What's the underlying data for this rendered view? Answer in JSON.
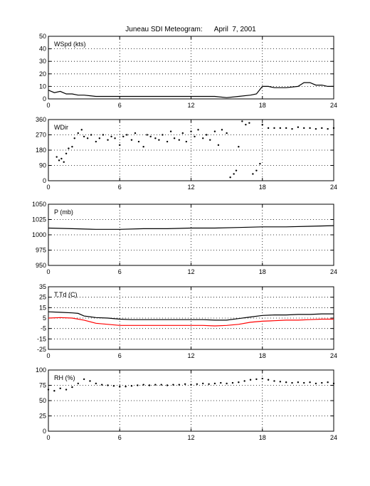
{
  "figure": {
    "title": "Juneau SDI Meteogram:      April  7, 2001"
  },
  "chart_data": [
    {
      "type": "line",
      "label": "WSpd (kts)",
      "xlim": [
        0,
        24
      ],
      "ylim": [
        0,
        50
      ],
      "xticks": [
        0,
        6,
        12,
        18,
        24
      ],
      "yticks": [
        0,
        10,
        20,
        30,
        40,
        50
      ],
      "grid": true,
      "series": [
        {
          "color": "#000000",
          "x": [
            0,
            0.5,
            1,
            1.5,
            2,
            2.5,
            3,
            4,
            5,
            6,
            7,
            8,
            9,
            10,
            11,
            12,
            13,
            14,
            15,
            16,
            17,
            17.5,
            18,
            18.5,
            19,
            20,
            21,
            21.5,
            22,
            22.5,
            23,
            23.5,
            24
          ],
          "y": [
            7,
            5,
            6,
            4,
            4,
            3,
            3,
            2,
            2,
            2,
            2,
            2,
            2,
            2,
            2,
            2,
            2,
            2,
            1,
            2,
            3,
            4,
            10,
            10,
            9,
            9,
            10,
            13,
            13,
            11,
            11,
            10,
            10
          ]
        }
      ]
    },
    {
      "type": "scatter",
      "label": "WDir",
      "xlim": [
        0,
        24
      ],
      "ylim": [
        0,
        360
      ],
      "xticks": [
        0,
        6,
        12,
        18,
        24
      ],
      "yticks": [
        0,
        90,
        180,
        270,
        360
      ],
      "grid": true,
      "series": [
        {
          "color": "#000000",
          "x": [
            0.7,
            0.9,
            1.1,
            1.3,
            1.5,
            1.7,
            2.0,
            2.2,
            2.5,
            2.8,
            3.0,
            3.3,
            3.6,
            4.0,
            4.3,
            4.6,
            5.0,
            5.3,
            5.6,
            6.0,
            6.3,
            6.6,
            7.0,
            7.3,
            7.6,
            8.0,
            8.3,
            8.6,
            9.0,
            9.3,
            9.6,
            10.0,
            10.3,
            10.6,
            11.0,
            11.3,
            11.6,
            12.0,
            12.3,
            12.6,
            13.0,
            13.3,
            13.6,
            14.0,
            14.3,
            14.6,
            15.0,
            15.3,
            15.6,
            15.8,
            16.0,
            16.3,
            16.6,
            16.9,
            17.2,
            17.5,
            17.8,
            18.0,
            18.5,
            19.0,
            19.5,
            20.0,
            20.5,
            21.0,
            21.5,
            22.0,
            22.5,
            23.0,
            23.5,
            24.0
          ],
          "y": [
            140,
            120,
            130,
            110,
            160,
            190,
            200,
            250,
            280,
            300,
            260,
            250,
            270,
            230,
            250,
            270,
            240,
            260,
            250,
            210,
            260,
            270,
            240,
            280,
            230,
            200,
            270,
            260,
            250,
            240,
            270,
            230,
            290,
            250,
            240,
            280,
            230,
            290,
            260,
            300,
            250,
            270,
            240,
            290,
            210,
            300,
            280,
            20,
            40,
            60,
            200,
            350,
            330,
            340,
            40,
            60,
            100,
            330,
            310,
            310,
            310,
            310,
            305,
            315,
            310,
            310,
            305,
            310,
            305,
            310
          ]
        }
      ]
    },
    {
      "type": "line",
      "label": "P (mb)",
      "xlim": [
        0,
        24
      ],
      "ylim": [
        950,
        1050
      ],
      "xticks": [
        0,
        6,
        12,
        18,
        24
      ],
      "yticks": [
        950,
        975,
        1000,
        1025,
        1050
      ],
      "grid": true,
      "series": [
        {
          "color": "#000000",
          "x": [
            0,
            2,
            4,
            6,
            8,
            10,
            12,
            14,
            16,
            18,
            20,
            22,
            24
          ],
          "y": [
            1011,
            1010,
            1009,
            1009,
            1010,
            1010,
            1011,
            1011,
            1012,
            1013,
            1013,
            1014,
            1015
          ]
        }
      ]
    },
    {
      "type": "line",
      "label": "T,Td (C)",
      "xlim": [
        0,
        24
      ],
      "ylim": [
        -25,
        35
      ],
      "xticks": [
        0,
        6,
        12,
        18,
        24
      ],
      "yticks": [
        -25,
        -15,
        -5,
        5,
        15,
        25,
        35
      ],
      "grid": true,
      "series": [
        {
          "color": "#000000",
          "x": [
            0,
            1,
            2,
            2.5,
            3,
            4,
            5,
            6,
            7,
            8,
            9,
            10,
            11,
            12,
            13,
            14,
            15,
            16,
            17,
            18,
            19,
            20,
            21,
            22,
            23,
            24
          ],
          "y": [
            11,
            10.5,
            10,
            9.5,
            7,
            5.5,
            5,
            4,
            3.5,
            3.5,
            3.5,
            3.5,
            3.5,
            3.5,
            3.5,
            3,
            3,
            4.5,
            6,
            7.5,
            8,
            8,
            8.5,
            8.5,
            9,
            9
          ]
        },
        {
          "color": "#ff0000",
          "x": [
            0,
            1,
            2,
            3,
            4,
            5,
            6,
            7,
            8,
            9,
            10,
            11,
            12,
            13,
            14,
            15,
            16,
            17,
            18,
            19,
            20,
            21,
            22,
            23,
            24
          ],
          "y": [
            5,
            5.5,
            5,
            3,
            0,
            -1,
            -2,
            -2,
            -2,
            -2,
            -2,
            -2,
            -2,
            -2,
            -2.5,
            -2,
            -1,
            1,
            2,
            2.5,
            3,
            3,
            3.5,
            4,
            4
          ]
        }
      ]
    },
    {
      "type": "scatter",
      "label": "RH (%)",
      "xlim": [
        0,
        24
      ],
      "ylim": [
        0,
        100
      ],
      "xticks": [
        0,
        6,
        12,
        18,
        24
      ],
      "yticks": [
        0,
        25,
        50,
        75,
        100
      ],
      "grid": true,
      "series": [
        {
          "color": "#000000",
          "x": [
            0,
            0.5,
            1,
            1.5,
            2,
            2.5,
            3,
            3.5,
            4,
            4.5,
            5,
            5.5,
            6,
            6.5,
            7,
            7.5,
            8,
            8.5,
            9,
            9.5,
            10,
            10.5,
            11,
            11.5,
            12,
            12.5,
            13,
            13.5,
            14,
            14.5,
            15,
            15.5,
            16,
            16.5,
            17,
            17.5,
            18,
            18.5,
            19,
            19.5,
            20,
            20.5,
            21,
            21.5,
            22,
            22.5,
            23,
            23.5,
            24
          ],
          "y": [
            68,
            66,
            70,
            68,
            72,
            78,
            85,
            82,
            78,
            76,
            75,
            74,
            73,
            73,
            74,
            75,
            76,
            75,
            76,
            76,
            75,
            76,
            76,
            77,
            76,
            77,
            78,
            77,
            78,
            79,
            78,
            79,
            80,
            82,
            84,
            85,
            86,
            84,
            82,
            81,
            80,
            79,
            80,
            79,
            80,
            78,
            79,
            80,
            78
          ]
        }
      ]
    }
  ]
}
